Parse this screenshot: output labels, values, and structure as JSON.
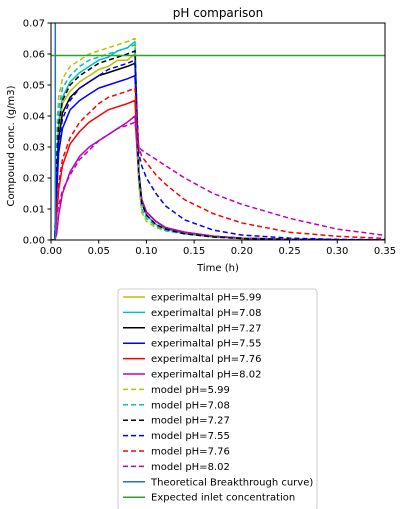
{
  "chart_data": {
    "type": "line",
    "title": "pH comparison",
    "xlabel": "Time (h)",
    "ylabel": "Compound conc. (g/m3)",
    "xlim": [
      0,
      0.35
    ],
    "ylim": [
      0,
      0.07
    ],
    "xticks": [
      0.0,
      0.05,
      0.1,
      0.15,
      0.2,
      0.25,
      0.3,
      0.35
    ],
    "yticks": [
      0.0,
      0.01,
      0.02,
      0.03,
      0.04,
      0.05,
      0.06,
      0.07
    ],
    "xtick_labels": [
      "0.00",
      "0.05",
      "0.10",
      "0.15",
      "0.20",
      "0.25",
      "0.30",
      "0.35"
    ],
    "ytick_labels": [
      "0.00",
      "0.01",
      "0.02",
      "0.03",
      "0.04",
      "0.05",
      "0.06",
      "0.07"
    ],
    "grid": false,
    "legend_position": "below",
    "series": [
      {
        "name": "experimaltal pH=5.99",
        "color": "#bfbf00",
        "style": "solid",
        "x": [
          0.0,
          0.004,
          0.006,
          0.008,
          0.012,
          0.02,
          0.03,
          0.04,
          0.05,
          0.06,
          0.07,
          0.08,
          0.088,
          0.09,
          0.092,
          0.095,
          0.1,
          0.11,
          0.12,
          0.14,
          0.17,
          0.2,
          0.25,
          0.3,
          0.35
        ],
        "y": [
          0.0,
          0.0,
          0.02,
          0.035,
          0.044,
          0.048,
          0.051,
          0.053,
          0.055,
          0.056,
          0.058,
          0.058,
          0.06,
          0.04,
          0.022,
          0.012,
          0.008,
          0.005,
          0.0035,
          0.002,
          0.001,
          0.0005,
          0.0002,
          0.0001,
          0.0
        ]
      },
      {
        "name": "experimaltal pH=7.08",
        "color": "#00bfbf",
        "style": "solid",
        "x": [
          0.0,
          0.004,
          0.006,
          0.008,
          0.012,
          0.02,
          0.03,
          0.04,
          0.05,
          0.06,
          0.07,
          0.08,
          0.088,
          0.09,
          0.092,
          0.095,
          0.1,
          0.11,
          0.12,
          0.14,
          0.17,
          0.2,
          0.25,
          0.3,
          0.35
        ],
        "y": [
          0.0,
          0.0,
          0.022,
          0.038,
          0.046,
          0.051,
          0.054,
          0.056,
          0.058,
          0.059,
          0.061,
          0.062,
          0.064,
          0.042,
          0.022,
          0.012,
          0.008,
          0.005,
          0.0035,
          0.002,
          0.001,
          0.0005,
          0.0002,
          0.0001,
          0.0
        ]
      },
      {
        "name": "experimaltal pH=7.27",
        "color": "#000000",
        "style": "solid",
        "x": [
          0.0,
          0.004,
          0.006,
          0.008,
          0.012,
          0.02,
          0.03,
          0.04,
          0.05,
          0.06,
          0.07,
          0.08,
          0.088,
          0.09,
          0.092,
          0.095,
          0.1,
          0.11,
          0.12,
          0.14,
          0.17,
          0.2,
          0.25,
          0.3,
          0.35
        ],
        "y": [
          0.0,
          0.0,
          0.018,
          0.032,
          0.041,
          0.046,
          0.049,
          0.051,
          0.053,
          0.054,
          0.055,
          0.056,
          0.057,
          0.04,
          0.022,
          0.013,
          0.009,
          0.006,
          0.004,
          0.0025,
          0.0012,
          0.0006,
          0.0002,
          0.0001,
          0.0
        ]
      },
      {
        "name": "experimaltal pH=7.55",
        "color": "#0000ff",
        "style": "solid",
        "x": [
          0.0,
          0.004,
          0.006,
          0.008,
          0.012,
          0.02,
          0.03,
          0.04,
          0.05,
          0.06,
          0.07,
          0.08,
          0.088,
          0.09,
          0.092,
          0.095,
          0.1,
          0.11,
          0.12,
          0.14,
          0.17,
          0.2,
          0.25,
          0.3,
          0.35
        ],
        "y": [
          0.0,
          0.0,
          0.015,
          0.028,
          0.036,
          0.042,
          0.045,
          0.047,
          0.049,
          0.05,
          0.051,
          0.052,
          0.053,
          0.038,
          0.022,
          0.013,
          0.009,
          0.006,
          0.004,
          0.0025,
          0.0012,
          0.0006,
          0.0002,
          0.0001,
          0.0
        ]
      },
      {
        "name": "experimaltal pH=7.76",
        "color": "#ff0000",
        "style": "solid",
        "x": [
          0.0,
          0.004,
          0.006,
          0.008,
          0.012,
          0.02,
          0.03,
          0.04,
          0.05,
          0.06,
          0.07,
          0.08,
          0.088,
          0.09,
          0.092,
          0.095,
          0.1,
          0.11,
          0.12,
          0.14,
          0.17,
          0.2,
          0.25,
          0.3,
          0.35
        ],
        "y": [
          0.0,
          0.0,
          0.008,
          0.016,
          0.024,
          0.031,
          0.035,
          0.038,
          0.04,
          0.042,
          0.043,
          0.044,
          0.045,
          0.032,
          0.02,
          0.013,
          0.009,
          0.006,
          0.004,
          0.0025,
          0.0012,
          0.0006,
          0.0002,
          0.0001,
          0.0
        ]
      },
      {
        "name": "experimaltal pH=8.02",
        "color": "#bf00bf",
        "style": "solid",
        "x": [
          0.0,
          0.004,
          0.006,
          0.008,
          0.012,
          0.02,
          0.03,
          0.04,
          0.05,
          0.06,
          0.07,
          0.08,
          0.088,
          0.09,
          0.092,
          0.095,
          0.1,
          0.11,
          0.12,
          0.14,
          0.17,
          0.2,
          0.25,
          0.3,
          0.35
        ],
        "y": [
          0.0,
          0.0,
          0.002,
          0.008,
          0.015,
          0.022,
          0.027,
          0.03,
          0.032,
          0.034,
          0.036,
          0.038,
          0.04,
          0.03,
          0.02,
          0.013,
          0.009,
          0.006,
          0.004,
          0.0025,
          0.0012,
          0.0006,
          0.0002,
          0.0001,
          0.0
        ]
      },
      {
        "name": "model pH=5.99",
        "color": "#bfbf00",
        "style": "dashed",
        "x": [
          0.0,
          0.004,
          0.006,
          0.008,
          0.012,
          0.02,
          0.03,
          0.04,
          0.05,
          0.06,
          0.07,
          0.08,
          0.088,
          0.09,
          0.092,
          0.095,
          0.1,
          0.11,
          0.12,
          0.14,
          0.17,
          0.2,
          0.25,
          0.3,
          0.35
        ],
        "y": [
          0.0,
          0.0,
          0.035,
          0.046,
          0.052,
          0.056,
          0.058,
          0.06,
          0.061,
          0.062,
          0.063,
          0.064,
          0.065,
          0.04,
          0.018,
          0.009,
          0.006,
          0.004,
          0.003,
          0.002,
          0.001,
          0.0005,
          0.0002,
          0.0001,
          0.0
        ]
      },
      {
        "name": "model pH=7.08",
        "color": "#00bfbf",
        "style": "dashed",
        "x": [
          0.0,
          0.004,
          0.006,
          0.008,
          0.012,
          0.02,
          0.03,
          0.04,
          0.05,
          0.06,
          0.07,
          0.08,
          0.088,
          0.09,
          0.092,
          0.095,
          0.1,
          0.11,
          0.12,
          0.14,
          0.17,
          0.2,
          0.25,
          0.3,
          0.35
        ],
        "y": [
          0.0,
          0.0,
          0.03,
          0.042,
          0.049,
          0.053,
          0.056,
          0.058,
          0.059,
          0.06,
          0.061,
          0.062,
          0.063,
          0.04,
          0.019,
          0.01,
          0.007,
          0.0045,
          0.003,
          0.002,
          0.001,
          0.0005,
          0.0002,
          0.0001,
          0.0
        ]
      },
      {
        "name": "model pH=7.27",
        "color": "#000000",
        "style": "dashed",
        "x": [
          0.0,
          0.004,
          0.006,
          0.008,
          0.012,
          0.02,
          0.03,
          0.04,
          0.05,
          0.06,
          0.07,
          0.08,
          0.088,
          0.09,
          0.092,
          0.095,
          0.1,
          0.11,
          0.12,
          0.14,
          0.17,
          0.2,
          0.25,
          0.3,
          0.35
        ],
        "y": [
          0.0,
          0.0,
          0.025,
          0.037,
          0.045,
          0.05,
          0.053,
          0.055,
          0.057,
          0.058,
          0.059,
          0.06,
          0.061,
          0.04,
          0.021,
          0.012,
          0.008,
          0.005,
          0.0035,
          0.002,
          0.001,
          0.0005,
          0.0002,
          0.0001,
          0.0
        ]
      },
      {
        "name": "model pH=7.55",
        "color": "#0000ff",
        "style": "dashed",
        "x": [
          0.0,
          0.004,
          0.006,
          0.008,
          0.012,
          0.02,
          0.03,
          0.04,
          0.05,
          0.06,
          0.07,
          0.08,
          0.088,
          0.09,
          0.092,
          0.095,
          0.1,
          0.11,
          0.12,
          0.14,
          0.17,
          0.2,
          0.25,
          0.3,
          0.35
        ],
        "y": [
          0.0,
          0.0,
          0.02,
          0.031,
          0.039,
          0.045,
          0.049,
          0.051,
          0.053,
          0.055,
          0.056,
          0.057,
          0.058,
          0.042,
          0.028,
          0.024,
          0.02,
          0.015,
          0.011,
          0.0065,
          0.0032,
          0.0016,
          0.0006,
          0.0002,
          0.0001
        ]
      },
      {
        "name": "model pH=7.76",
        "color": "#ff0000",
        "style": "dashed",
        "x": [
          0.0,
          0.004,
          0.006,
          0.008,
          0.012,
          0.02,
          0.03,
          0.04,
          0.05,
          0.06,
          0.07,
          0.08,
          0.088,
          0.09,
          0.092,
          0.095,
          0.1,
          0.11,
          0.12,
          0.14,
          0.17,
          0.2,
          0.25,
          0.3,
          0.35
        ],
        "y": [
          0.0,
          0.0,
          0.01,
          0.018,
          0.026,
          0.033,
          0.038,
          0.041,
          0.044,
          0.046,
          0.047,
          0.048,
          0.049,
          0.038,
          0.03,
          0.027,
          0.025,
          0.021,
          0.018,
          0.013,
          0.0085,
          0.0055,
          0.0025,
          0.0012,
          0.0005
        ]
      },
      {
        "name": "model pH=8.02",
        "color": "#bf00bf",
        "style": "dashed",
        "x": [
          0.0,
          0.004,
          0.006,
          0.008,
          0.012,
          0.02,
          0.03,
          0.04,
          0.05,
          0.06,
          0.07,
          0.08,
          0.088,
          0.09,
          0.092,
          0.095,
          0.1,
          0.11,
          0.12,
          0.14,
          0.17,
          0.2,
          0.25,
          0.3,
          0.35
        ],
        "y": [
          0.0,
          0.0,
          0.008,
          0.011,
          0.016,
          0.021,
          0.026,
          0.029,
          0.032,
          0.034,
          0.036,
          0.037,
          0.038,
          0.033,
          0.03,
          0.029,
          0.028,
          0.026,
          0.024,
          0.02,
          0.015,
          0.0115,
          0.007,
          0.0035,
          0.0015
        ]
      },
      {
        "name": "Theoretical Breakthrough curve)",
        "color": "#1f77b4",
        "style": "solid",
        "x": [
          0.0,
          0.0045,
          0.0045,
          0.0046
        ],
        "y": [
          0.0,
          0.0,
          0.07,
          0.07
        ]
      },
      {
        "name": "Expected inlet concentration",
        "color": "#2ca02c",
        "style": "solid",
        "x": [
          0.0,
          0.35
        ],
        "y": [
          0.0595,
          0.0595
        ]
      }
    ]
  }
}
